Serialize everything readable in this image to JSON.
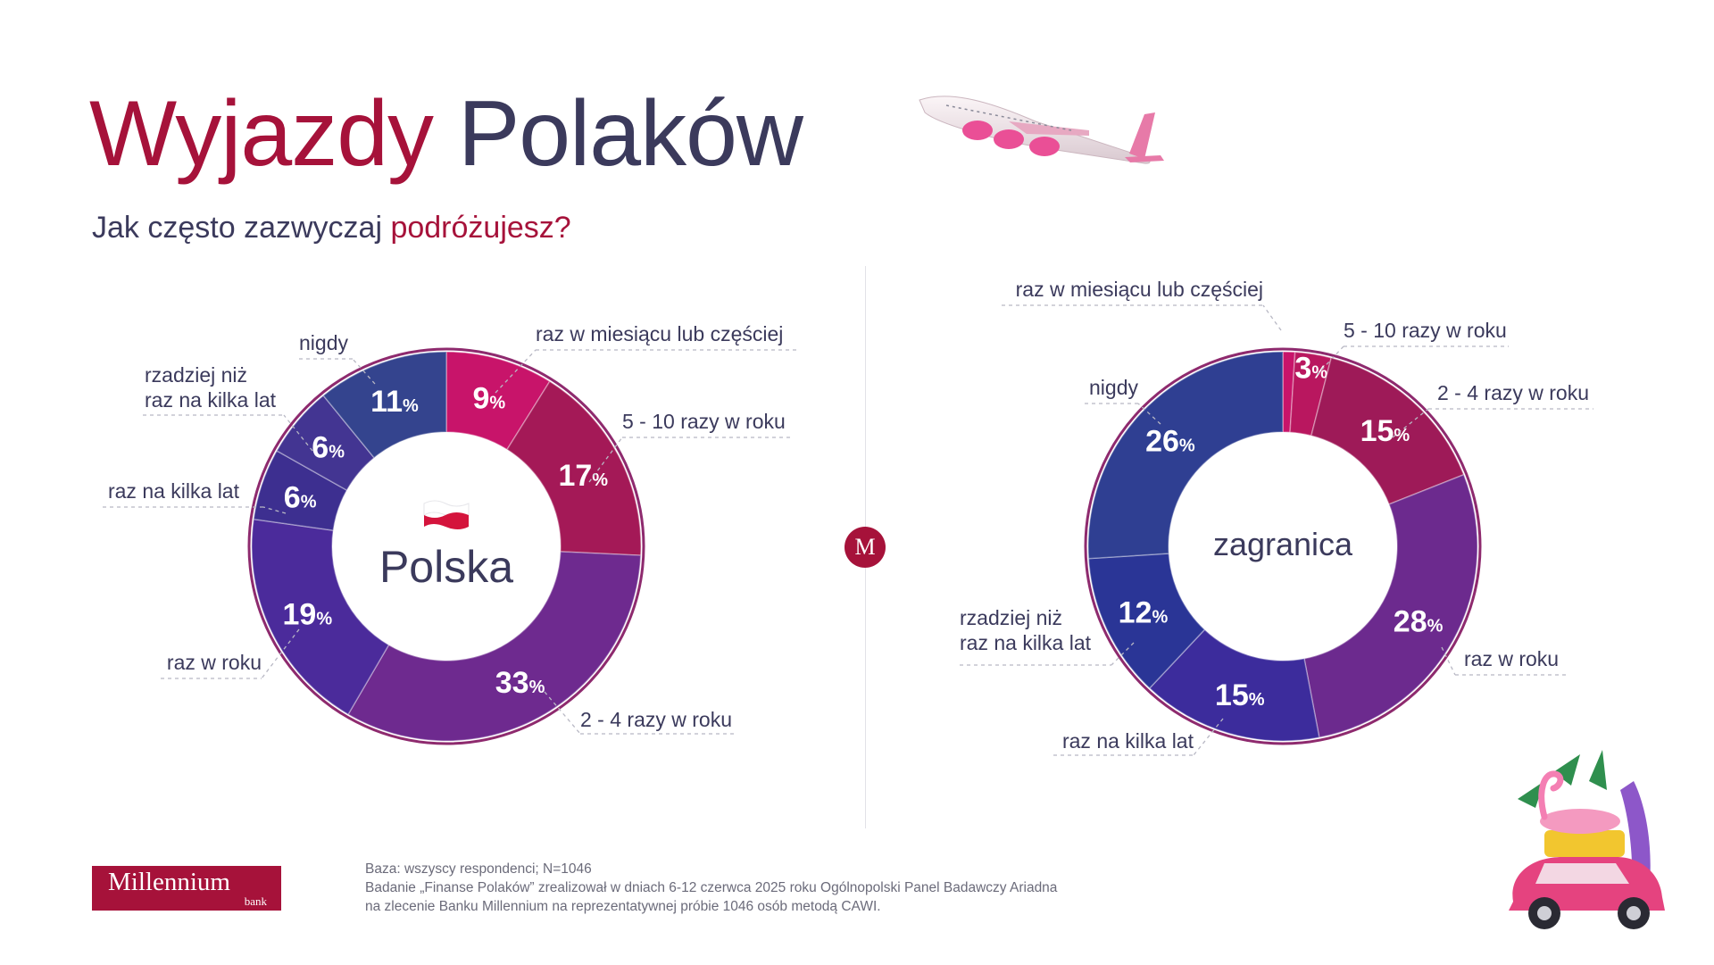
{
  "title": {
    "part1": "Wyjazdy",
    "part2": "Polaków"
  },
  "subtitle": {
    "part1": "Jak często zazwyczaj",
    "part2": "podróżujesz?"
  },
  "colors": {
    "brand": "#a6123a",
    "text_dark": "#3b3a5c",
    "text_muted": "#6b6b7a",
    "slice_palette": [
      "#c11567",
      "#a81a5a",
      "#7a2a86",
      "#4a2f9a",
      "#3a2f8c",
      "#2f3a98",
      "#3a4590"
    ]
  },
  "brand_badge": "M",
  "chart_data": [
    {
      "type": "pie",
      "center_label": "Polska",
      "unit": "%",
      "slices": [
        {
          "label": "raz w miesiącu lub częściej",
          "value": 9,
          "color": "#c8146a"
        },
        {
          "label": "5 - 10 razy w roku",
          "value": 17,
          "color": "#a41957"
        },
        {
          "label": "2 - 4 razy w roku",
          "value": 33,
          "color": "#6e2a8f"
        },
        {
          "label": "raz w roku",
          "value": 19,
          "color": "#4b2b9b"
        },
        {
          "label": "raz na kilka lat",
          "value": 6,
          "color": "#3d2f90"
        },
        {
          "label": "rzadziej niż\nraz na kilka lat",
          "value": 6,
          "color": "#433592"
        },
        {
          "label": "nigdy",
          "value": 11,
          "color": "#34448e"
        }
      ]
    },
    {
      "type": "pie",
      "center_label": "zagranica",
      "unit": "%",
      "slices": [
        {
          "label": "raz w miesiącu lub częściej",
          "value": 1,
          "color": "#c8146a"
        },
        {
          "label": "5 - 10 razy w roku",
          "value": 3,
          "color": "#b9175f"
        },
        {
          "label": "2 - 4 razy w roku",
          "value": 15,
          "color": "#9e1a58"
        },
        {
          "label": "raz w roku",
          "value": 28,
          "color": "#6c2a8e"
        },
        {
          "label": "raz na kilka lat",
          "value": 15,
          "color": "#3c2c9c"
        },
        {
          "label": "rzadziej niż\nraz na kilka lat",
          "value": 12,
          "color": "#2a3596"
        },
        {
          "label": "nigdy",
          "value": 26,
          "color": "#2f3f92"
        }
      ]
    }
  ],
  "footer": {
    "line1": "Baza: wszyscy respondenci; N=1046",
    "line2": "Badanie „Finanse Polaków” zrealizował w dniach 6-12 czerwca 2025 roku Ogólnopolski Panel Badawczy Ariadna",
    "line3": "na zlecenie Banku Millennium na reprezentatywnej próbie 1046 osób metodą CAWI."
  },
  "logo": {
    "name": "Millennium",
    "sub": "bank"
  }
}
